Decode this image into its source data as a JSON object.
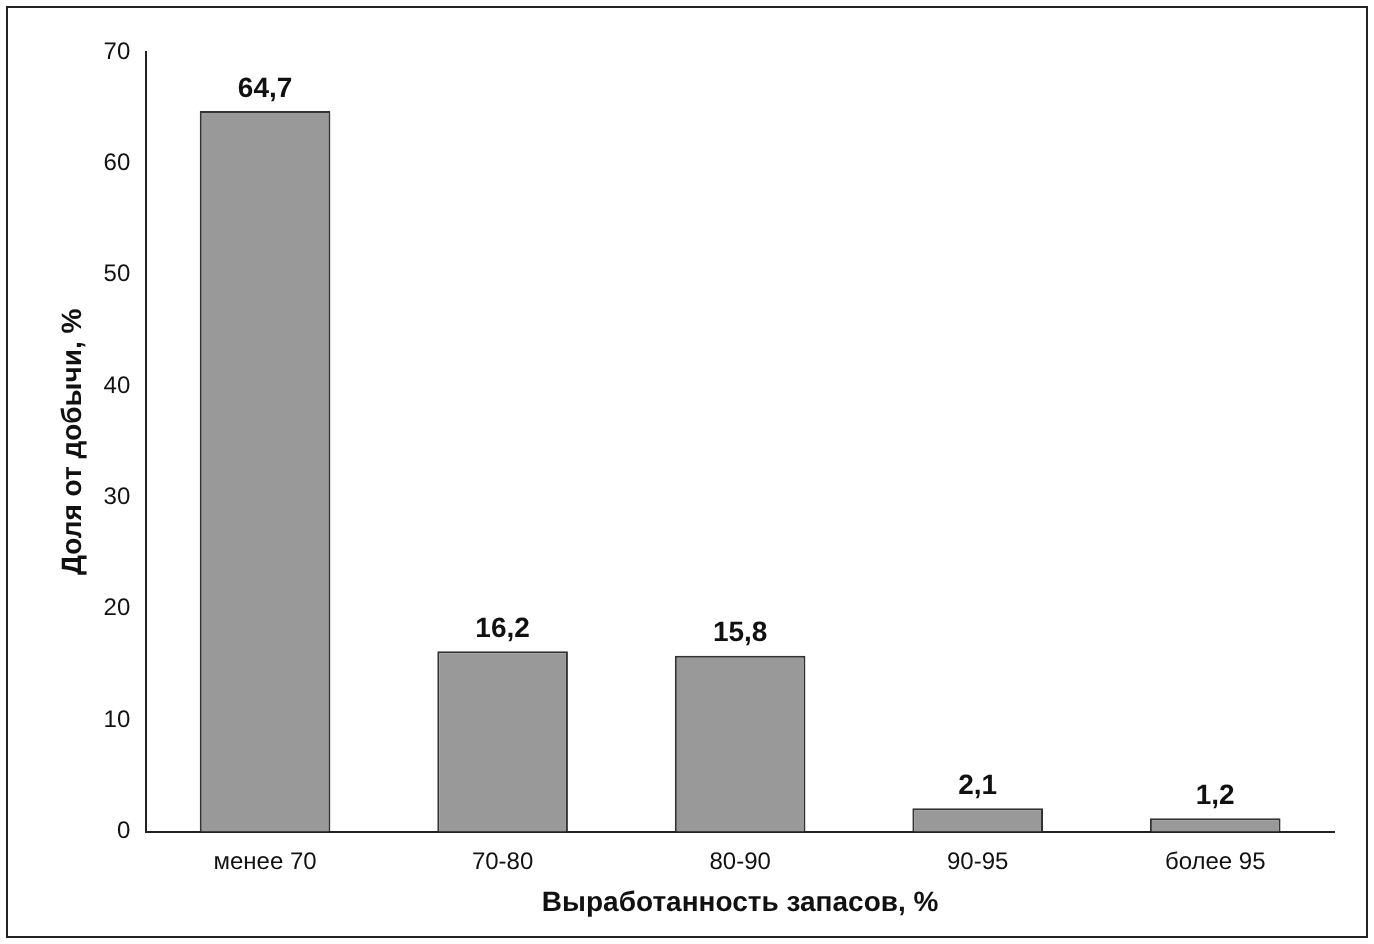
{
  "chart_data": {
    "type": "bar",
    "xlabel": "Выработанность запасов, %",
    "ylabel": "Доля от добычи, %",
    "categories": [
      "менее 70",
      "70-80",
      "80-90",
      "90-95",
      "более 95"
    ],
    "values": [
      64.7,
      16.2,
      15.8,
      2.1,
      1.2
    ],
    "value_labels": [
      "64,7",
      "16,2",
      "15,8",
      "2,1",
      "1,2"
    ],
    "color": "#999999",
    "ylim": [
      0,
      70
    ],
    "yticks": [
      0,
      10,
      20,
      30,
      40,
      50,
      60,
      70
    ],
    "grid": false,
    "legend": false
  }
}
